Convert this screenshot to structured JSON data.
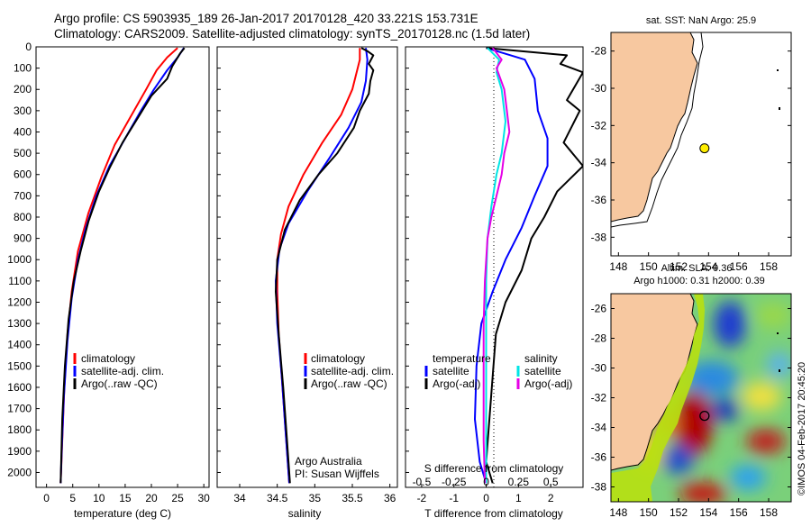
{
  "header": {
    "line1": "Argo profile: CS 5903935_189 26-Jan-2017 20170128_420 33.221S 153.731E",
    "line2": "Climatology: CARS2009. Satellite-adjusted climatology: synTS_20170128.nc (1.5d later)"
  },
  "side_label": "©IMOS 04-Feb-2017 20:45:20",
  "colors": {
    "climatology": "#ff0000",
    "satellite": "#0000ff",
    "argo": "#000000",
    "salinity_satellite": "#00e5e5",
    "salinity_argo": "#e600e6",
    "land": "#f7c8a0"
  },
  "chart_data": [
    {
      "type": "line",
      "xlabel": "temperature (deg C)",
      "ylabel": "",
      "xlim": [
        -2,
        31
      ],
      "ylim": [
        2070,
        0
      ],
      "y_ticks": [
        0,
        100,
        200,
        300,
        400,
        500,
        600,
        700,
        800,
        900,
        1000,
        1100,
        1200,
        1300,
        1400,
        1500,
        1600,
        1700,
        1800,
        1900,
        2000
      ],
      "x_ticks": [
        0,
        5,
        10,
        15,
        20,
        25,
        30
      ],
      "legend": [
        "climatology",
        "satellite-adj. clim.",
        "Argo(..raw -QC)"
      ],
      "legend_position": "lower-center",
      "series": [
        {
          "name": "climatology",
          "color": "#ff0000",
          "points": [
            [
              25,
              5
            ],
            [
              23,
              50
            ],
            [
              21,
              110
            ],
            [
              19,
              200
            ],
            [
              16,
              330
            ],
            [
              13,
              460
            ],
            [
              10.5,
              610
            ],
            [
              8,
              780
            ],
            [
              6,
              960
            ],
            [
              4.8,
              1150
            ],
            [
              4,
              1350
            ],
            [
              3.4,
              1600
            ],
            [
              3,
              1850
            ],
            [
              2.7,
              2050
            ]
          ]
        },
        {
          "name": "satellite-adj. clim.",
          "color": "#0000ff",
          "points": [
            [
              26.2,
              5
            ],
            [
              25,
              50
            ],
            [
              23,
              110
            ],
            [
              20.5,
              200
            ],
            [
              18,
              300
            ],
            [
              15,
              430
            ],
            [
              12,
              560
            ],
            [
              9.5,
              700
            ],
            [
              7.5,
              850
            ],
            [
              6,
              1000
            ],
            [
              4.8,
              1180
            ],
            [
              4,
              1380
            ],
            [
              3.3,
              1650
            ],
            [
              2.9,
              1900
            ],
            [
              2.7,
              2050
            ]
          ]
        },
        {
          "name": "Argo(..raw -QC)",
          "color": "#000000",
          "points": [
            [
              26.3,
              5
            ],
            [
              25.5,
              30
            ],
            [
              24,
              90
            ],
            [
              23,
              150
            ],
            [
              20,
              230
            ],
            [
              17.5,
              330
            ],
            [
              14.5,
              450
            ],
            [
              12,
              570
            ],
            [
              10,
              680
            ],
            [
              8,
              820
            ],
            [
              6.5,
              960
            ],
            [
              5.2,
              1100
            ],
            [
              4.2,
              1280
            ],
            [
              3.5,
              1500
            ],
            [
              3,
              1750
            ],
            [
              2.7,
              2050
            ]
          ]
        }
      ]
    },
    {
      "type": "line",
      "xlabel": "salinity",
      "ylabel": "",
      "xlim": [
        33.7,
        36.1
      ],
      "ylim": [
        2070,
        0
      ],
      "x_ticks": [
        34,
        34.5,
        35,
        35.5,
        36
      ],
      "legend": [
        "climatology",
        "satellite-adj. clim.",
        "Argo(..raw -QC)"
      ],
      "legend_position": "lower-center",
      "annotation": [
        "Argo Australia",
        "PI: Susan Wijffels"
      ],
      "series": [
        {
          "name": "climatology",
          "color": "#ff0000",
          "points": [
            [
              35.6,
              5
            ],
            [
              35.6,
              60
            ],
            [
              35.5,
              200
            ],
            [
              35.35,
              320
            ],
            [
              35.1,
              450
            ],
            [
              34.85,
              600
            ],
            [
              34.65,
              750
            ],
            [
              34.55,
              880
            ],
            [
              34.5,
              1000
            ],
            [
              34.5,
              1150
            ],
            [
              34.52,
              1350
            ],
            [
              34.57,
              1600
            ],
            [
              34.62,
              1850
            ],
            [
              34.66,
              2050
            ]
          ]
        },
        {
          "name": "satellite-adj. clim.",
          "color": "#0000ff",
          "points": [
            [
              35.68,
              5
            ],
            [
              35.7,
              60
            ],
            [
              35.68,
              160
            ],
            [
              35.62,
              260
            ],
            [
              35.45,
              380
            ],
            [
              35.2,
              520
            ],
            [
              34.9,
              680
            ],
            [
              34.65,
              830
            ],
            [
              34.53,
              950
            ],
            [
              34.48,
              1100
            ],
            [
              34.5,
              1300
            ],
            [
              34.56,
              1550
            ],
            [
              34.61,
              1800
            ],
            [
              34.66,
              2050
            ]
          ]
        },
        {
          "name": "Argo(..raw -QC)",
          "color": "#000000",
          "points": [
            [
              35.62,
              5
            ],
            [
              35.7,
              20
            ],
            [
              35.78,
              40
            ],
            [
              35.72,
              80
            ],
            [
              35.78,
              110
            ],
            [
              35.74,
              160
            ],
            [
              35.72,
              220
            ],
            [
              35.6,
              300
            ],
            [
              35.52,
              380
            ],
            [
              35.3,
              500
            ],
            [
              35.05,
              600
            ],
            [
              34.8,
              720
            ],
            [
              34.6,
              860
            ],
            [
              34.5,
              1000
            ],
            [
              34.48,
              1150
            ],
            [
              34.52,
              1350
            ],
            [
              34.58,
              1600
            ],
            [
              34.63,
              1850
            ],
            [
              34.67,
              2050
            ]
          ]
        }
      ]
    },
    {
      "type": "line",
      "xlabel": "T difference from climatology",
      "x2label": "S difference from climatology",
      "ylabel": "",
      "xlim": [
        -2.5,
        3.0
      ],
      "x_ticks": [
        -2,
        -1,
        0,
        1,
        2
      ],
      "x2_ticks": [
        -0.5,
        -0.25,
        0,
        0.25,
        0.5
      ],
      "ylim": [
        2070,
        0
      ],
      "legend": [
        "temperature",
        "satellite",
        "Argo(-adj)",
        "salinity",
        "satellite",
        "Argo(-adj)"
      ],
      "legend_position": "lower-center",
      "series": [
        {
          "name": "temperature satellite",
          "color": "#0000ff",
          "points": [
            [
              0,
              5
            ],
            [
              1.2,
              60
            ],
            [
              1.5,
              150
            ],
            [
              1.6,
              300
            ],
            [
              1.9,
              430
            ],
            [
              1.9,
              560
            ],
            [
              1.5,
              700
            ],
            [
              1.1,
              850
            ],
            [
              0.6,
              1000
            ],
            [
              0.2,
              1150
            ],
            [
              -0.15,
              1300
            ],
            [
              -0.3,
              1500
            ],
            [
              -0.35,
              1750
            ],
            [
              -0.2,
              1950
            ],
            [
              0,
              2050
            ]
          ]
        },
        {
          "name": "temperature Argo(-adj)",
          "color": "#000000",
          "points": [
            [
              0,
              5
            ],
            [
              2.5,
              40
            ],
            [
              2.3,
              80
            ],
            [
              3.0,
              120
            ],
            [
              2.5,
              250
            ],
            [
              2.9,
              300
            ],
            [
              2.4,
              450
            ],
            [
              3.0,
              560
            ],
            [
              2.2,
              680
            ],
            [
              1.8,
              800
            ],
            [
              1.4,
              900
            ],
            [
              1.1,
              1050
            ],
            [
              0.6,
              1200
            ],
            [
              0.3,
              1350
            ],
            [
              0.2,
              1550
            ],
            [
              0.1,
              1750
            ],
            [
              0,
              1950
            ],
            [
              0.2,
              2050
            ]
          ]
        },
        {
          "name": "salinity satellite",
          "color": "#00e5e5",
          "points": [
            [
              0.01,
              5
            ],
            [
              0.1,
              60
            ],
            [
              0.08,
              120
            ],
            [
              0.12,
              200
            ],
            [
              0.15,
              350
            ],
            [
              0.12,
              500
            ],
            [
              0.08,
              600
            ],
            [
              0.04,
              750
            ],
            [
              0.01,
              900
            ],
            [
              0.0,
              1100
            ],
            [
              0.0,
              1400
            ],
            [
              0.0,
              1700
            ],
            [
              0.0,
              2050
            ]
          ]
        },
        {
          "name": "salinity Argo(-adj)",
          "color": "#e600e6",
          "points": [
            [
              0.05,
              5
            ],
            [
              0.12,
              60
            ],
            [
              0.08,
              100
            ],
            [
              0.14,
              200
            ],
            [
              0.16,
              300
            ],
            [
              0.18,
              400
            ],
            [
              0.14,
              500
            ],
            [
              0.12,
              600
            ],
            [
              0.08,
              700
            ],
            [
              0.04,
              800
            ],
            [
              0.01,
              900
            ],
            [
              -0.01,
              1100
            ],
            [
              -0.02,
              1300
            ],
            [
              -0.02,
              1600
            ],
            [
              -0.02,
              1850
            ],
            [
              -0.01,
              2050
            ]
          ]
        }
      ]
    },
    {
      "type": "map",
      "title": "sat. SST: NaN Argo: 25.9",
      "x_ticks": [
        "148",
        "150",
        "152",
        "154",
        "156",
        "158"
      ],
      "y_ticks": [
        "-28",
        "-30",
        "-32",
        "-34",
        "-36",
        "-38"
      ],
      "xlim": [
        147.5,
        159.5
      ],
      "ylim": [
        -39,
        -27
      ],
      "argo_position": [
        153.731,
        -33.221
      ]
    },
    {
      "type": "heatmap",
      "title": "Altim. SLA: 0.36",
      "subtitle": "Argo h1000: 0.31 h2000: 0.39",
      "x_ticks": [
        "148",
        "150",
        "152",
        "154",
        "156",
        "158"
      ],
      "y_ticks": [
        "-26",
        "-28",
        "-30",
        "-32",
        "-34",
        "-36",
        "-38"
      ],
      "xlim": [
        147.5,
        159.5
      ],
      "ylim": [
        -39,
        -25
      ],
      "argo_position": [
        153.731,
        -33.221
      ]
    }
  ]
}
